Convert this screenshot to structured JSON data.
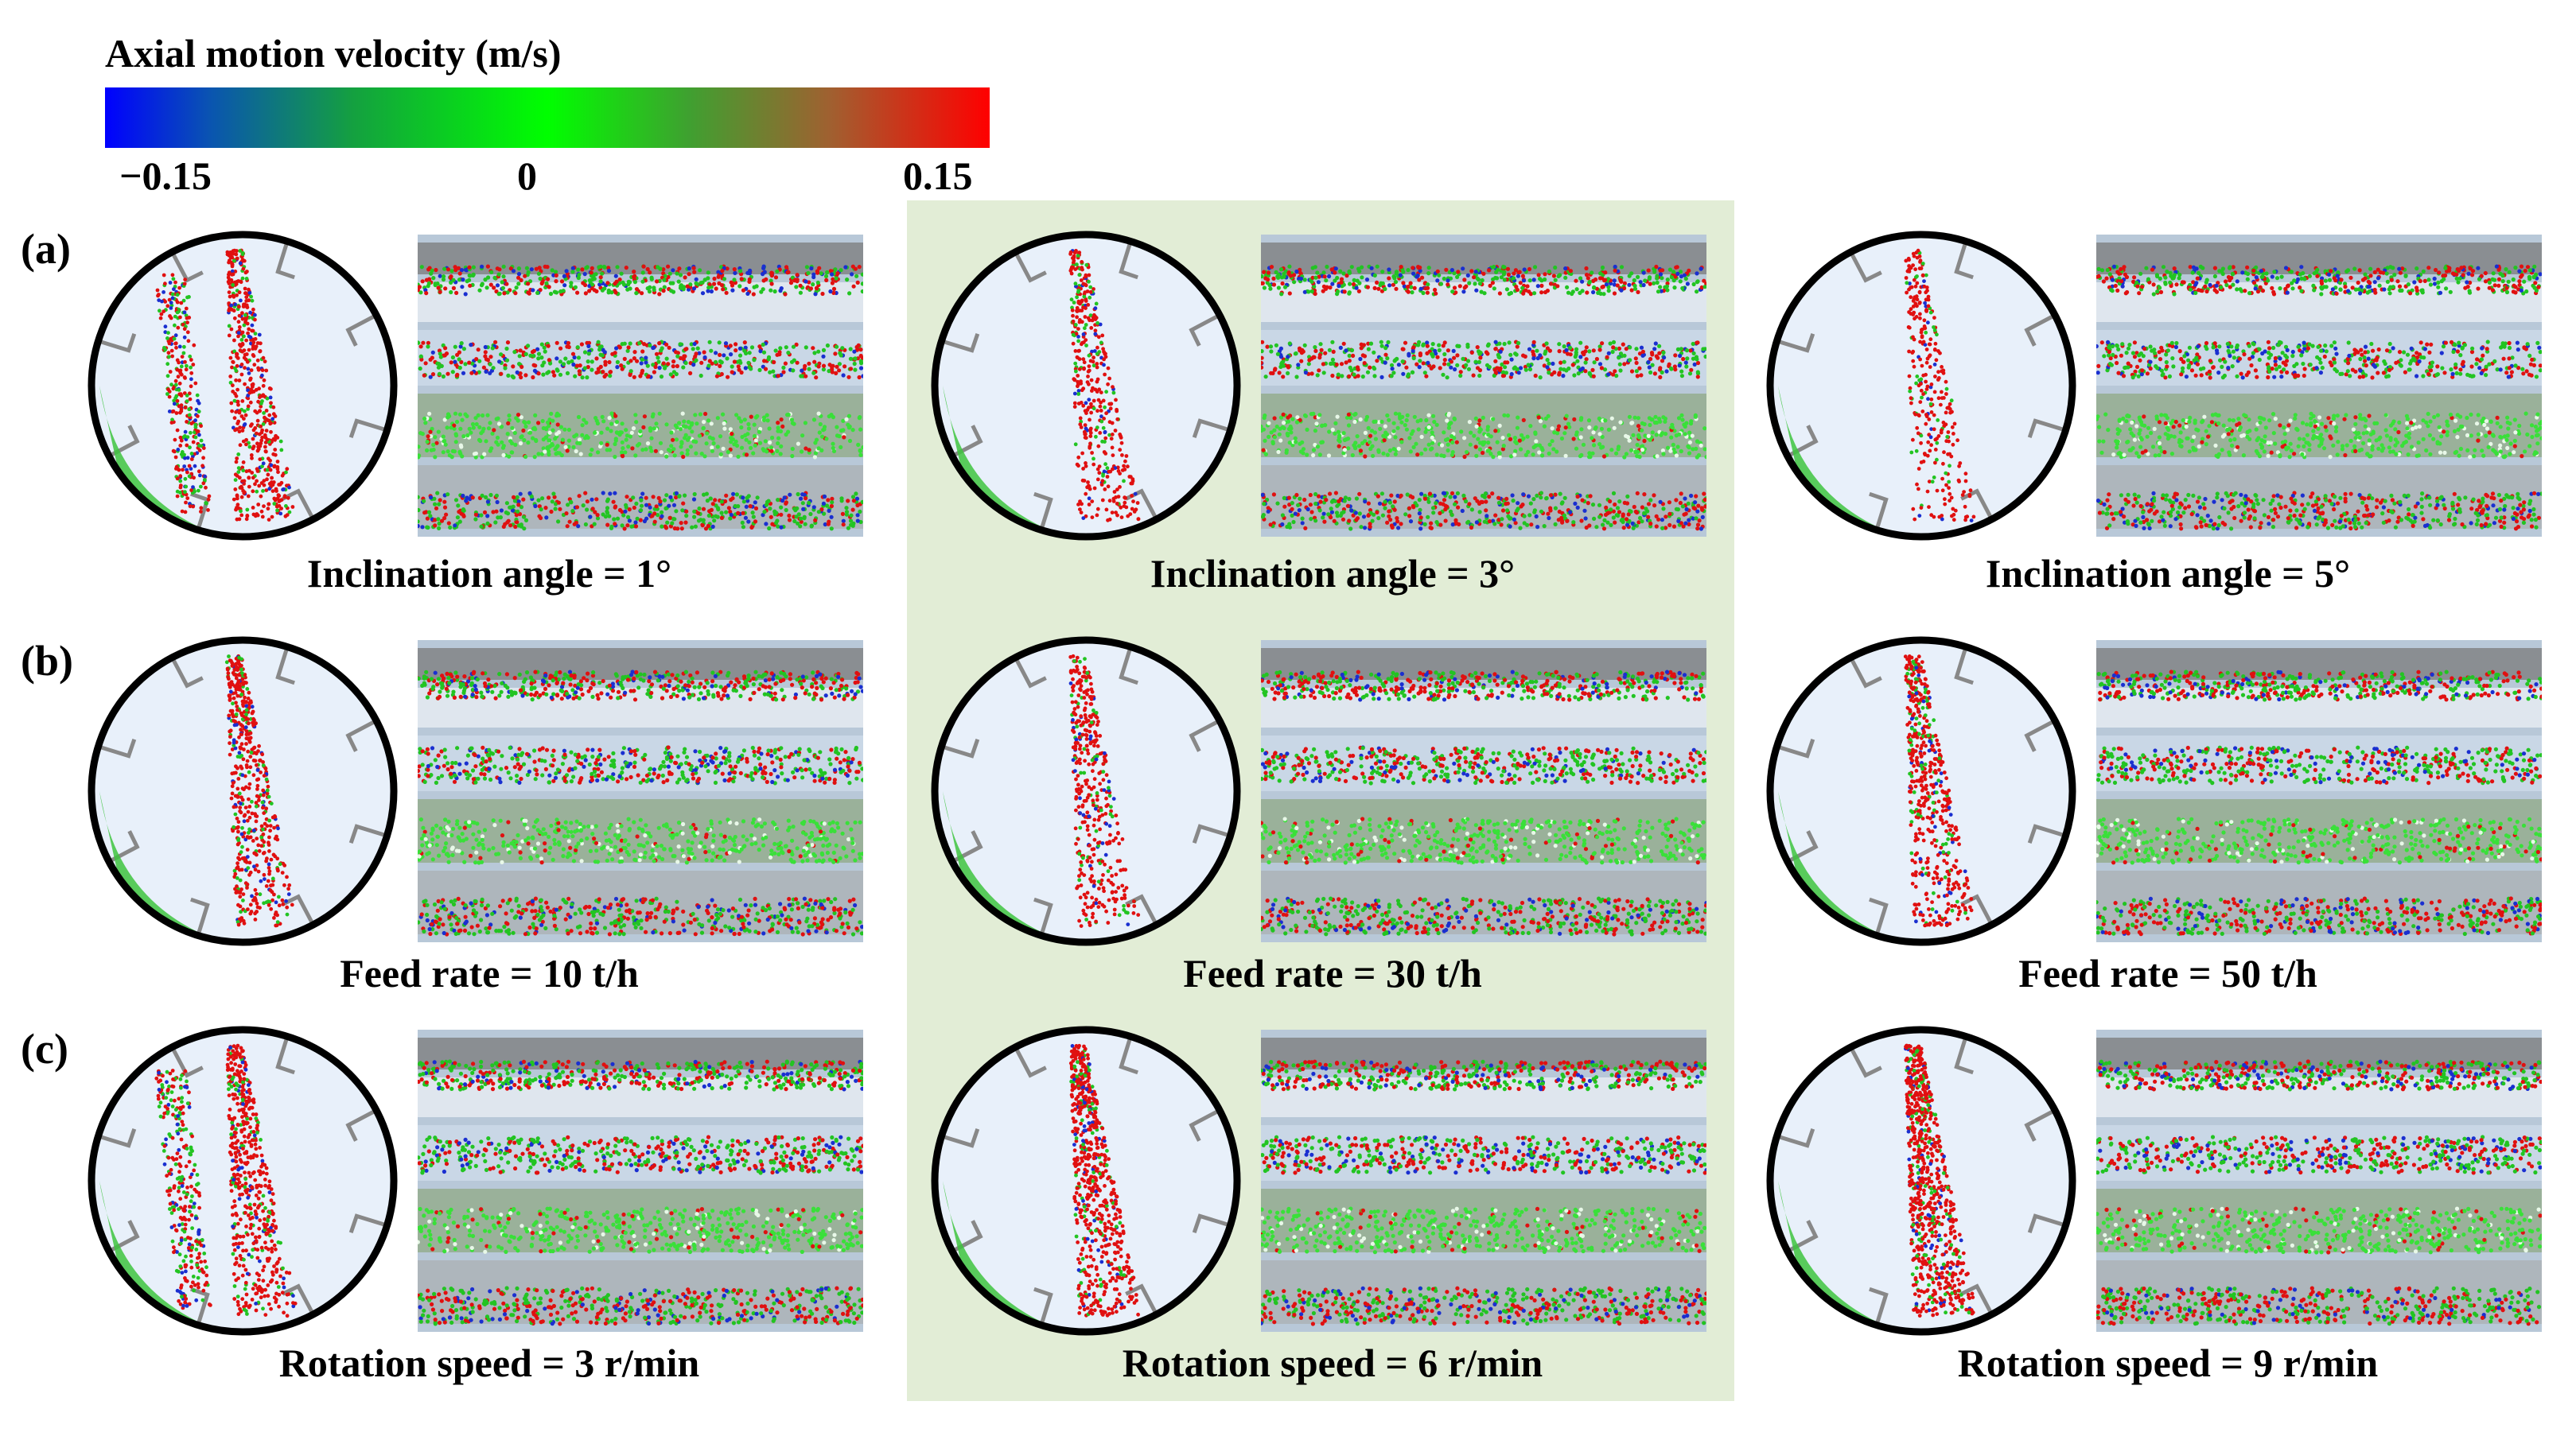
{
  "colorbar": {
    "title": "Axial motion velocity (m/s)",
    "tick_min": "−0.15",
    "tick_mid": "0",
    "tick_max": "0.15",
    "colors": [
      "#0000ff",
      "#00ff00",
      "#ff0000"
    ]
  },
  "rows": [
    {
      "label": "(a)",
      "captions": [
        "Inclination angle = 1°",
        "Inclination angle = 3°",
        "Inclination angle = 5°"
      ]
    },
    {
      "label": "(b)",
      "captions": [
        "Feed rate = 10 t/h",
        "Feed rate = 30 t/h",
        "Feed rate = 50 t/h"
      ]
    },
    {
      "label": "(c)",
      "captions": [
        "Rotation speed = 3 r/min",
        "Rotation speed = 6 r/min",
        "Rotation speed = 9 r/min"
      ]
    }
  ],
  "highlight_color": "#e2edd6"
}
